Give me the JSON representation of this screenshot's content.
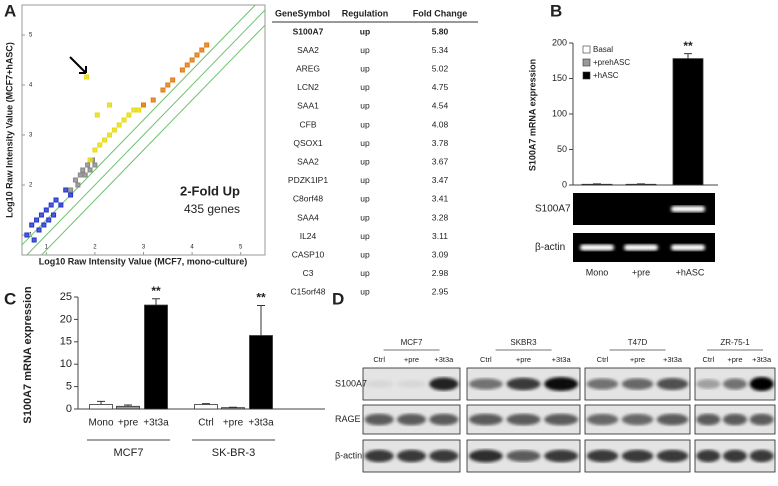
{
  "panel_labels": [
    "A",
    "B",
    "C",
    "D"
  ],
  "chart_data": [
    {
      "type": "scatter",
      "xlabel": "Log10 Raw Intensity Value (MCF7, mono-culture)",
      "ylabel": "Log10 Raw Intensity Value (MCF7+hASC)",
      "annotations": [
        "2-Fold Up",
        "435 genes"
      ],
      "xlim": [
        0.5,
        5.5
      ],
      "ylim": [
        0.6,
        5.6
      ],
      "xticks": [
        1,
        2,
        3,
        4,
        5
      ],
      "yticks": [
        1,
        2,
        3,
        4,
        5
      ],
      "series": [
        {
          "color": "#2233cc",
          "x": [
            0.6,
            0.7,
            0.75,
            0.8,
            0.85,
            0.9,
            0.95,
            1.0,
            1.05,
            1.1,
            1.15,
            1.2,
            1.3,
            1.4,
            1.5
          ],
          "y": [
            1.0,
            1.2,
            0.9,
            1.3,
            1.1,
            1.4,
            1.2,
            1.5,
            1.3,
            1.6,
            1.4,
            1.7,
            1.6,
            1.9,
            1.8
          ]
        },
        {
          "color": "#888888",
          "x": [
            1.5,
            1.6,
            1.65,
            1.7,
            1.75,
            1.8,
            1.85,
            1.9,
            1.95,
            2.0
          ],
          "y": [
            1.9,
            2.1,
            2.0,
            2.2,
            2.3,
            2.2,
            2.4,
            2.3,
            2.5,
            2.4
          ]
        },
        {
          "color": "#e6dc10",
          "x": [
            1.9,
            2.0,
            2.1,
            2.2,
            2.3,
            2.4,
            2.5,
            2.6,
            2.7,
            2.8,
            2.9,
            3.0,
            1.83,
            2.05,
            2.3
          ],
          "y": [
            2.5,
            2.7,
            2.8,
            2.9,
            3.0,
            3.1,
            3.2,
            3.3,
            3.4,
            3.5,
            3.5,
            3.6,
            4.16,
            3.4,
            3.6
          ]
        },
        {
          "color": "#e07a10",
          "x": [
            3.0,
            3.2,
            3.4,
            3.5,
            3.6,
            3.8,
            3.9,
            4.0,
            4.1,
            4.2,
            4.3
          ],
          "y": [
            3.6,
            3.7,
            3.9,
            4.0,
            4.1,
            4.3,
            4.4,
            4.5,
            4.6,
            4.7,
            4.8
          ]
        }
      ]
    },
    {
      "type": "bar",
      "ylabel": "S100A7 mRNA expression",
      "legend": [
        "Basal",
        "+prehASC",
        "+hASC"
      ],
      "categories": [
        "Mono",
        "+pre",
        "+hASC"
      ],
      "values": [
        1,
        1,
        178
      ],
      "errors": [
        0.5,
        0.5,
        7
      ],
      "colors": [
        "#ffffff",
        "#999999",
        "#000000"
      ],
      "significance": [
        null,
        null,
        "**"
      ],
      "ylim": [
        0,
        200
      ],
      "yticks": [
        0,
        50,
        100,
        150,
        200
      ]
    },
    {
      "type": "bar",
      "ylabel": "S100A7 mRNA expression",
      "categories": [
        "Mono",
        "+pre",
        "+3t3a",
        "Ctrl",
        "+pre",
        "+3t3a"
      ],
      "groups": [
        "MCF7",
        "SK-BR-3"
      ],
      "values": [
        1.0,
        0.6,
        23.2,
        1.0,
        0.3,
        16.4
      ],
      "errors": [
        0.7,
        0.3,
        1.4,
        0.2,
        0.1,
        6.7
      ],
      "colors": [
        "#ffffff",
        "#999999",
        "#000000",
        "#ffffff",
        "#999999",
        "#000000"
      ],
      "significance": [
        null,
        null,
        "**",
        null,
        null,
        "**"
      ],
      "ylim": [
        0,
        25
      ],
      "yticks": [
        0,
        5,
        10,
        15,
        20,
        25
      ]
    }
  ],
  "table": {
    "header": [
      "GeneSymbol",
      "Regulation",
      "Fold Change"
    ],
    "rows": [
      [
        "S100A7",
        "up",
        "5.80"
      ],
      [
        "SAA2",
        "up",
        "5.34"
      ],
      [
        "AREG",
        "up",
        "5.02"
      ],
      [
        "LCN2",
        "up",
        "4.75"
      ],
      [
        "SAA1",
        "up",
        "4.54"
      ],
      [
        "CFB",
        "up",
        "4.08"
      ],
      [
        "QSOX1",
        "up",
        "3.78"
      ],
      [
        "SAA2",
        "up",
        "3.67"
      ],
      [
        "PDZK1IP1",
        "up",
        "3.47"
      ],
      [
        "C8orf48",
        "up",
        "3.41"
      ],
      [
        "SAA4",
        "up",
        "3.28"
      ],
      [
        "IL24",
        "up",
        "3.11"
      ],
      [
        "CASP10",
        "up",
        "3.09"
      ],
      [
        "C3",
        "up",
        "2.98"
      ],
      [
        "C15orf48",
        "up",
        "2.95"
      ]
    ]
  },
  "gel": {
    "rows": [
      "S100A7",
      "β-actin"
    ]
  },
  "blot": {
    "cell_lines": [
      "MCF7",
      "SKBR3",
      "T47D",
      "ZR-75-1"
    ],
    "lanes": [
      [
        "Ctrl",
        "+pre",
        "+3t3a"
      ],
      [
        "Ctrl",
        "+pre",
        "+3t3a"
      ],
      [
        "Ctrl",
        "+pre",
        "+3t3a"
      ],
      [
        "Ctrl",
        "+pre",
        "+3t3a"
      ]
    ],
    "rows": [
      "S100A7",
      "RAGE",
      "β-actin"
    ]
  }
}
